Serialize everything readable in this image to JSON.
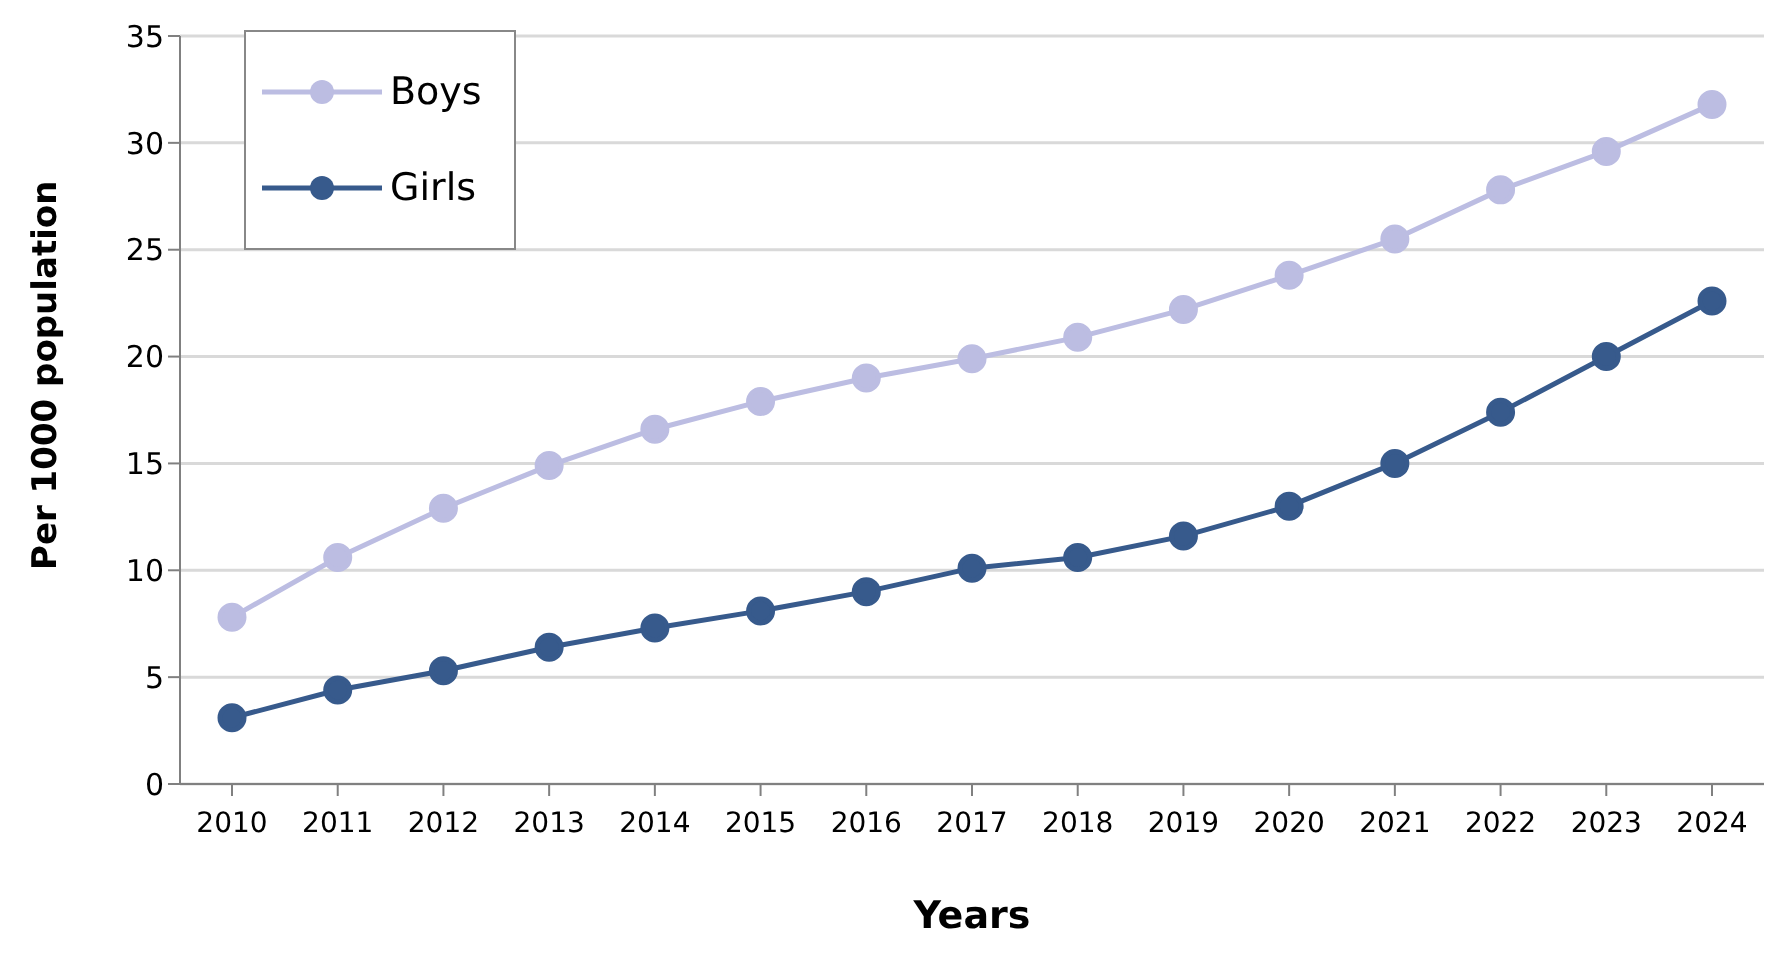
{
  "chart_data": {
    "type": "line",
    "xlabel": "Years",
    "ylabel": "Per 1000 population",
    "categories": [
      "2010",
      "2011",
      "2012",
      "2013",
      "2014",
      "2015",
      "2016",
      "2017",
      "2018",
      "2019",
      "2020",
      "2021",
      "2022",
      "2023",
      "2024"
    ],
    "series": [
      {
        "name": "Boys",
        "color": "#bcbde2",
        "values": [
          7.8,
          10.6,
          12.9,
          14.9,
          16.6,
          17.9,
          19.0,
          19.9,
          20.9,
          22.2,
          23.8,
          25.5,
          27.8,
          29.6,
          31.8
        ]
      },
      {
        "name": "Girls",
        "color": "#375a8c",
        "values": [
          3.1,
          4.4,
          5.3,
          6.4,
          7.3,
          8.1,
          9.0,
          10.1,
          10.6,
          11.6,
          13.0,
          15.0,
          17.4,
          20.0,
          22.6
        ]
      }
    ],
    "ylim": [
      0,
      35
    ],
    "yticks": [
      0,
      5,
      10,
      15,
      20,
      25,
      30,
      35
    ],
    "grid": "y",
    "legend": "top left",
    "marker": "circle",
    "line_style": "solid"
  }
}
